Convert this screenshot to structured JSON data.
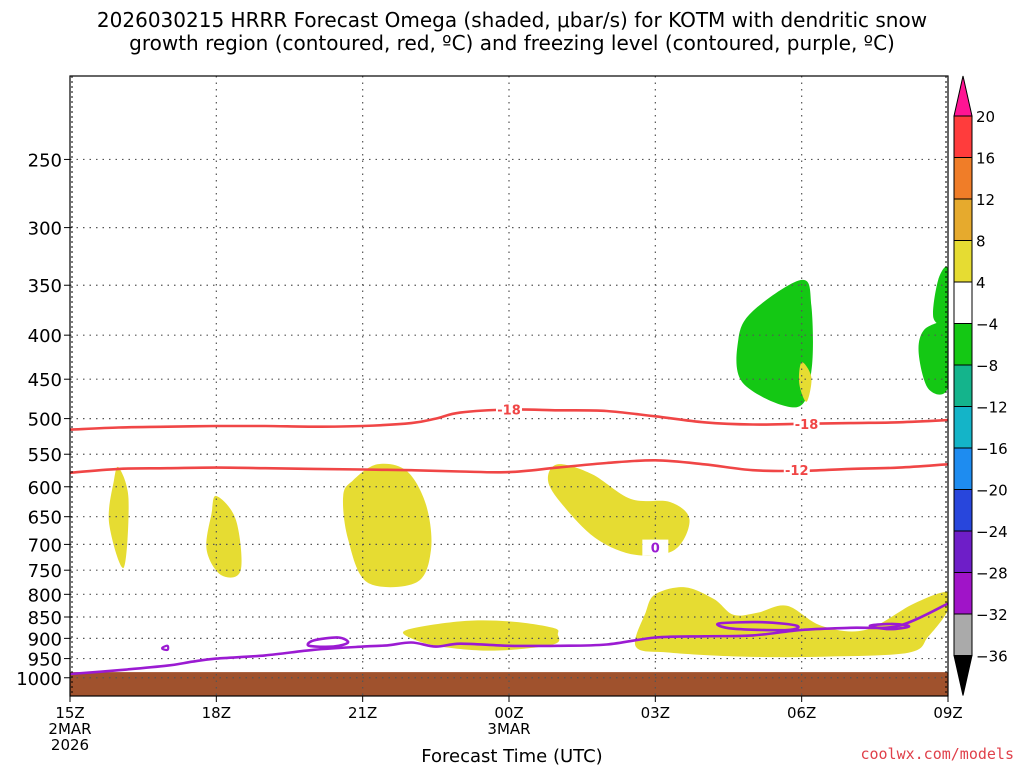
{
  "title_line1": "2026030215 HRRR Forecast Omega (shaded, μbar/s) for KOTM with dendritic snow",
  "title_line2": "growth region (contoured, red, ºC) and freezing level (contoured, purple, ºC)",
  "credit": "coolwx.com/models",
  "chart_data": {
    "type": "contour",
    "title": "2026030215 HRRR Forecast Omega (shaded, μbar/s) for KOTM with dendritic snow growth region (contoured, red, ºC) and freezing level (contoured, purple, ºC)",
    "xlabel": "Forecast Time (UTC)",
    "ylabel": "",
    "x_ticks": [
      "15Z",
      "18Z",
      "21Z",
      "00Z",
      "03Z",
      "06Z",
      "09Z"
    ],
    "x_hours": [
      0,
      3,
      6,
      9,
      12,
      15,
      18
    ],
    "x_sub_labels": [
      {
        "hour": 0,
        "lines": [
          "2MAR",
          "2026"
        ]
      },
      {
        "hour": 9,
        "lines": [
          "3MAR"
        ]
      }
    ],
    "xlim": [
      0,
      18
    ],
    "y_ticks": [
      250,
      300,
      350,
      400,
      450,
      500,
      550,
      600,
      650,
      700,
      750,
      800,
      850,
      900,
      950,
      1000
    ],
    "ylim": [
      1050,
      200
    ],
    "y_scale": "log",
    "grid": true,
    "colorbar": {
      "labels": [
        "20",
        "16",
        "12",
        "8",
        "4",
        "-4",
        "-8",
        "-12",
        "-16",
        "-20",
        "-24",
        "-28",
        "-32",
        "-36"
      ],
      "colors": [
        "#ff1493",
        "#ff3c3c",
        "#f07d28",
        "#e6aa2d",
        "#e6dc32",
        "#ffffff",
        "#14c814",
        "#14b48c",
        "#14b4c8",
        "#1e8cf0",
        "#2846dc",
        "#6e1ec8",
        "#a014c8",
        "#aaaaaa",
        "#000000"
      ]
    },
    "ground": {
      "pressure_top": 985,
      "color": "#a0522d"
    },
    "shaded_regions": [
      {
        "name": "omega 4 to 8",
        "color": "#e6dc32",
        "points": [
          [
            1.0,
            570
          ],
          [
            1.2,
            620
          ],
          [
            1.1,
            745
          ],
          [
            0.8,
            660
          ],
          [
            0.9,
            590
          ]
        ]
      },
      {
        "name": "omega 4 to 8",
        "color": "#e6dc32",
        "points": [
          [
            3.0,
            615
          ],
          [
            3.4,
            655
          ],
          [
            3.5,
            750
          ],
          [
            3.1,
            760
          ],
          [
            2.8,
            710
          ],
          [
            2.9,
            645
          ]
        ]
      },
      {
        "name": "omega 4 to 8",
        "color": "#e6dc32",
        "points": [
          [
            5.8,
            590
          ],
          [
            6.3,
            565
          ],
          [
            6.9,
            575
          ],
          [
            7.3,
            630
          ],
          [
            7.4,
            710
          ],
          [
            7.1,
            775
          ],
          [
            6.1,
            775
          ],
          [
            5.7,
            690
          ],
          [
            5.6,
            615
          ]
        ]
      },
      {
        "name": "omega 4 to 8",
        "color": "#e6dc32",
        "points": [
          [
            10.0,
            565
          ],
          [
            10.7,
            580
          ],
          [
            11.5,
            620
          ],
          [
            12.3,
            625
          ],
          [
            12.7,
            655
          ],
          [
            12.4,
            710
          ],
          [
            11.6,
            720
          ],
          [
            10.8,
            690
          ],
          [
            10.1,
            630
          ],
          [
            9.8,
            590
          ]
        ]
      },
      {
        "name": "omega 4 to 8",
        "color": "#e6dc32",
        "points": [
          [
            6.9,
            880
          ],
          [
            8.0,
            860
          ],
          [
            9.0,
            860
          ],
          [
            9.9,
            875
          ],
          [
            10.0,
            890
          ],
          [
            9.9,
            915
          ],
          [
            8.7,
            930
          ],
          [
            7.6,
            920
          ],
          [
            7.0,
            900
          ]
        ]
      },
      {
        "name": "omega 4 to 8",
        "color": "#e6dc32",
        "points": [
          [
            12.0,
            800
          ],
          [
            12.6,
            785
          ],
          [
            13.2,
            810
          ],
          [
            13.6,
            845
          ],
          [
            14.1,
            840
          ],
          [
            14.7,
            825
          ],
          [
            15.4,
            870
          ],
          [
            16.3,
            880
          ],
          [
            17.3,
            820
          ],
          [
            18.0,
            795
          ],
          [
            18.0,
            835
          ],
          [
            17.6,
            895
          ],
          [
            17.2,
            935
          ],
          [
            15.5,
            945
          ],
          [
            13.8,
            945
          ],
          [
            12.3,
            935
          ],
          [
            11.6,
            920
          ],
          [
            11.8,
            840
          ]
        ]
      },
      {
        "name": "omega -4 to -8",
        "color": "#14c814",
        "points": [
          [
            14.0,
            375
          ],
          [
            15.0,
            345
          ],
          [
            15.2,
            370
          ],
          [
            15.2,
            440
          ],
          [
            14.9,
            485
          ],
          [
            13.8,
            455
          ],
          [
            13.7,
            405
          ]
        ]
      },
      {
        "name": "omega -4 to -8",
        "color": "#14c814",
        "points": [
          [
            17.9,
            385
          ],
          [
            18.0,
            385
          ],
          [
            18.0,
            460
          ],
          [
            17.6,
            462
          ],
          [
            17.4,
            420
          ],
          [
            17.5,
            395
          ]
        ]
      },
      {
        "name": "omega -4 to -8",
        "color": "#14c814",
        "points": [
          [
            17.8,
            345
          ],
          [
            18.0,
            335
          ],
          [
            18.0,
            385
          ],
          [
            17.7,
            382
          ]
        ]
      },
      {
        "name": "omega 4 to 8",
        "color": "#e6dc32",
        "points": [
          [
            15.0,
            430
          ],
          [
            15.2,
            448
          ],
          [
            15.1,
            478
          ],
          [
            14.95,
            455
          ]
        ]
      }
    ],
    "series": [
      {
        "name": "-18",
        "color": "#f04646",
        "kind": "isotherm",
        "x": [
          0,
          1,
          2,
          3,
          4,
          5,
          6,
          7,
          7.5,
          8,
          9,
          10,
          11,
          12,
          13,
          14,
          15,
          16,
          17,
          18
        ],
        "y": [
          515,
          512,
          511,
          510,
          510,
          511,
          510,
          506,
          500,
          492,
          488,
          489,
          490,
          497,
          505,
          508,
          507,
          506,
          505,
          502
        ]
      },
      {
        "name": "-12",
        "color": "#f04646",
        "kind": "isotherm",
        "x": [
          0,
          1,
          2,
          3,
          4,
          5,
          6,
          7,
          8,
          9,
          10,
          11,
          12,
          13,
          14,
          15,
          16,
          17,
          18
        ],
        "y": [
          578,
          572,
          571,
          570,
          571,
          572,
          573,
          574,
          576,
          577,
          570,
          563,
          559,
          565,
          574,
          575,
          572,
          570,
          565
        ]
      },
      {
        "name": "0",
        "color": "#9b1bd2",
        "kind": "freezing-level",
        "x": [
          0,
          1,
          2,
          2.5,
          3,
          4,
          5,
          6,
          6.5,
          7,
          7.5,
          8,
          9,
          10,
          11,
          12,
          13,
          14,
          15,
          16,
          17,
          18
        ],
        "y": [
          990,
          980,
          968,
          958,
          950,
          942,
          928,
          920,
          917,
          910,
          920,
          913,
          918,
          918,
          915,
          898,
          895,
          893,
          880,
          875,
          870,
          820
        ]
      }
    ],
    "contour_labels": [
      {
        "value": "-18",
        "x": 9.0,
        "y": 488,
        "color": "#f04646"
      },
      {
        "value": "-18",
        "x": 15.1,
        "y": 507,
        "color": "#f04646"
      },
      {
        "value": "-12",
        "x": 14.9,
        "y": 574,
        "color": "#f04646"
      },
      {
        "value": "0",
        "x": 12.0,
        "y": 706,
        "color": "#9b1bd2"
      }
    ]
  }
}
